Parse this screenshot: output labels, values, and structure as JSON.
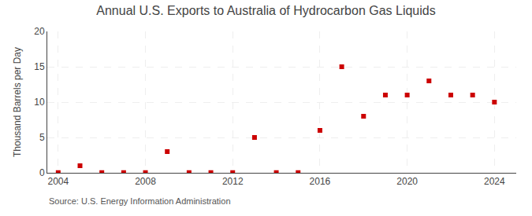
{
  "chart_data": {
    "type": "scatter",
    "title": "Annual U.S. Exports to Australia of Hydrocarbon Gas Liquids",
    "ylabel": "Thousand Barrels per Day",
    "annotations": [
      "Source: U.S. Energy Information Administration"
    ],
    "x": [
      2004,
      2005,
      2006,
      2007,
      2008,
      2009,
      2010,
      2011,
      2012,
      2013,
      2014,
      2015,
      2016,
      2017,
      2018,
      2019,
      2020,
      2021,
      2022,
      2023,
      2024
    ],
    "values": [
      0.03,
      1.0,
      0.03,
      0.03,
      0.03,
      3.0,
      0.03,
      0.03,
      0.03,
      5.0,
      0.03,
      0.03,
      6.0,
      15.0,
      8.0,
      11.0,
      11.0,
      13.0,
      11.0,
      11.0,
      10.0
    ],
    "color": "#cc0000",
    "marker": "square",
    "xlim": [
      2003.5,
      2025.0
    ],
    "ylim": [
      0,
      20
    ],
    "xticks": [
      2004,
      2008,
      2012,
      2016,
      2020,
      2024
    ],
    "yticks": [
      0,
      5,
      10,
      15,
      20
    ],
    "grid": true
  }
}
